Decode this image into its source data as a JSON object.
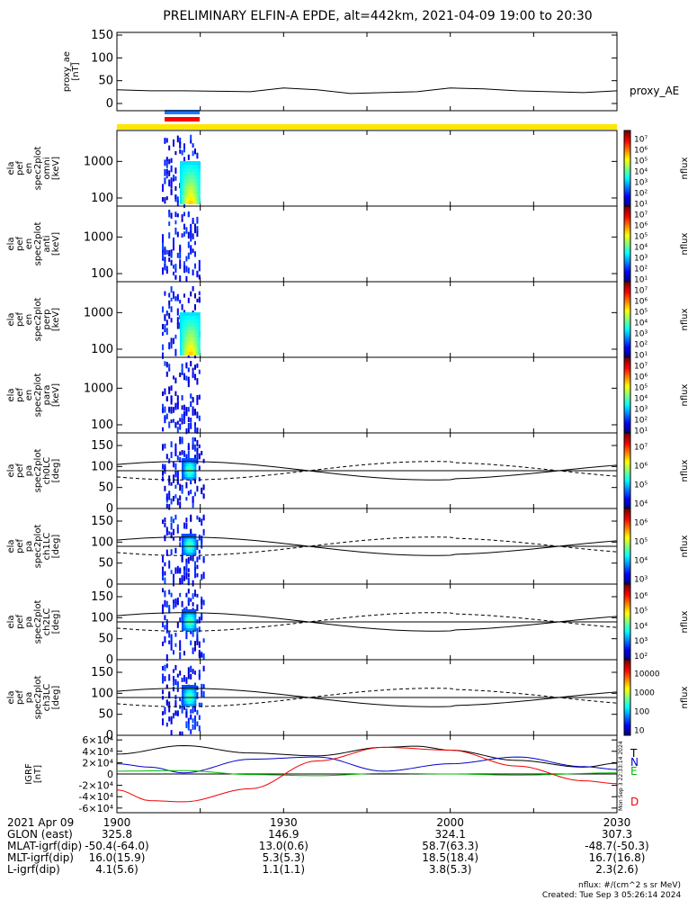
{
  "title": "PRELIMINARY ELFIN-A EPDE, alt=442km, 2021-04-09 19:00 to 20:30",
  "colors": {
    "yellow_bar": "#ffe600",
    "blue_bar": "#1e78ff",
    "red_bar": "#ff0000"
  },
  "chart_data": [
    {
      "type": "line",
      "name": "proxy_ae",
      "ylabel": "proxy_ae\n[nT]",
      "yticks": [
        "0",
        "50",
        "100",
        "150"
      ],
      "ylim": [
        0,
        160
      ],
      "legend": "proxy_AE",
      "x_minutes": [
        0,
        6,
        12,
        18,
        24,
        30,
        36,
        42,
        48,
        54,
        60,
        66,
        72,
        78,
        84,
        90
      ],
      "y": [
        30,
        28,
        28,
        27,
        26,
        34,
        30,
        22,
        24,
        26,
        34,
        32,
        28,
        26,
        24,
        28
      ]
    },
    {
      "type": "heatmap",
      "name": "elx_pef_en_spec2plot_omni",
      "ylabel": [
        "ela",
        "pef",
        "en",
        "spec2plot",
        "omni",
        "[keV]"
      ],
      "yticks": [
        "100",
        "1000"
      ],
      "yscale": "log",
      "colorbar": {
        "label": "nflux",
        "ticks": [
          "10¹",
          "10²",
          "10³",
          "10⁴",
          "10⁵",
          "10⁶",
          "10⁷"
        ]
      }
    },
    {
      "type": "heatmap",
      "name": "elx_pef_en_spec2plot_anti",
      "ylabel": [
        "ela",
        "pef",
        "en",
        "spec2plot",
        "anti",
        "[keV]"
      ],
      "yticks": [
        "100",
        "1000"
      ],
      "yscale": "log",
      "colorbar": {
        "label": "nflux",
        "ticks": [
          "10¹",
          "10²",
          "10³",
          "10⁴",
          "10⁵",
          "10⁶",
          "10⁷"
        ]
      }
    },
    {
      "type": "heatmap",
      "name": "elx_pef_en_spec2plot_perp",
      "ylabel": [
        "ela",
        "pef",
        "en",
        "spec2plot",
        "perp",
        "[keV]"
      ],
      "yticks": [
        "100",
        "1000"
      ],
      "yscale": "log",
      "colorbar": {
        "label": "nflux",
        "ticks": [
          "10¹",
          "10²",
          "10³",
          "10⁴",
          "10⁵",
          "10⁶",
          "10⁷"
        ]
      }
    },
    {
      "type": "heatmap",
      "name": "elx_pef_en_spec2plot_para",
      "ylabel": [
        "ela",
        "pef",
        "en",
        "spec2plot",
        "para",
        "[keV]"
      ],
      "yticks": [
        "100",
        "1000"
      ],
      "yscale": "log",
      "colorbar": {
        "label": "nflux",
        "ticks": [
          "10¹",
          "10²",
          "10³",
          "10⁴",
          "10⁵",
          "10⁶",
          "10⁷"
        ]
      }
    },
    {
      "type": "heatmap",
      "name": "elx_pef_pa_spec2plot_ch0LC",
      "ylabel": [
        "ela",
        "pef",
        "pa",
        "spec2plot",
        "ch0LC",
        "[deg]"
      ],
      "yticks": [
        "0",
        "50",
        "100",
        "150"
      ],
      "ylim": [
        0,
        180
      ],
      "colorbar": {
        "label": "nflux",
        "ticks": [
          "10⁴",
          "10⁵",
          "10⁶",
          "10⁷"
        ]
      }
    },
    {
      "type": "heatmap",
      "name": "elx_pef_pa_spec2plot_ch1LC",
      "ylabel": [
        "ela",
        "pef",
        "pa",
        "spec2plot",
        "ch1LC",
        "[deg]"
      ],
      "yticks": [
        "0",
        "50",
        "100",
        "150"
      ],
      "ylim": [
        0,
        180
      ],
      "colorbar": {
        "label": "nflux",
        "ticks": [
          "10³",
          "10⁴",
          "10⁵",
          "10⁶"
        ]
      }
    },
    {
      "type": "heatmap",
      "name": "elx_pef_pa_spec2plot_ch2LC",
      "ylabel": [
        "ela",
        "pef",
        "pa",
        "spec2plot",
        "ch2LC",
        "[deg]"
      ],
      "yticks": [
        "0",
        "50",
        "100",
        "150"
      ],
      "ylim": [
        0,
        180
      ],
      "colorbar": {
        "label": "nflux",
        "ticks": [
          "10²",
          "10³",
          "10⁴",
          "10⁵",
          "10⁶"
        ]
      }
    },
    {
      "type": "heatmap",
      "name": "elx_pef_pa_spec2plot_ch3LC",
      "ylabel": [
        "ela",
        "pef",
        "pa",
        "spec2plot",
        "ch3LC",
        "[deg]"
      ],
      "yticks": [
        "0",
        "50",
        "100",
        "150"
      ],
      "ylim": [
        0,
        180
      ],
      "colorbar": {
        "label": "nflux",
        "ticks": [
          "10",
          "100",
          "1000",
          "10000"
        ]
      }
    },
    {
      "type": "line",
      "name": "igrf",
      "ylabel": [
        "IGRF",
        "[nT]"
      ],
      "yticks": [
        "-6×10⁴",
        "-4×10⁴",
        "-2×10⁴",
        "0",
        "2×10⁴",
        "4×10⁴",
        "6×10⁴"
      ],
      "ylim": [
        -65000,
        65000
      ],
      "series": [
        {
          "name": "T",
          "color": "#000000",
          "x_minutes": [
            0,
            12,
            24,
            36,
            48,
            54,
            60,
            72,
            84,
            90
          ],
          "y": [
            35000,
            50000,
            37000,
            32000,
            47000,
            49000,
            42000,
            24000,
            12000,
            19000
          ]
        },
        {
          "name": "N",
          "color": "#0000cc",
          "x_minutes": [
            0,
            6,
            12,
            24,
            36,
            48,
            60,
            72,
            84,
            90
          ],
          "y": [
            18000,
            12000,
            2000,
            26000,
            30000,
            5000,
            18000,
            30000,
            13000,
            8000
          ]
        },
        {
          "name": "E",
          "color": "#00bb00",
          "x_minutes": [
            0,
            12,
            24,
            36,
            48,
            60,
            72,
            90
          ],
          "y": [
            5000,
            6000,
            -1000,
            -3000,
            1000,
            0,
            -2000,
            2000
          ]
        },
        {
          "name": "D",
          "color": "#ee0000",
          "x_minutes": [
            0,
            6,
            12,
            24,
            36,
            48,
            60,
            72,
            84,
            90
          ],
          "y": [
            -28000,
            -47000,
            -49000,
            -26000,
            23000,
            47000,
            42000,
            14000,
            -12000,
            -17000
          ]
        }
      ]
    }
  ],
  "colorbar_side_label": "Mon Sep 3 22:33:14 2024",
  "xaxis": {
    "row_labels": [
      "2021 Apr 09",
      "GLON (east)",
      "MLAT-igrf(dip)",
      "MLT-igrf(dip)",
      "L-igrf(dip)"
    ],
    "ticks": [
      {
        "minute": 0,
        "values": [
          "1900",
          "325.8",
          "-50.4(-64.0)",
          "16.0(15.9)",
          "4.1(5.6)"
        ]
      },
      {
        "minute": 30,
        "values": [
          "1930",
          "146.9",
          "13.0(0.6)",
          "5.3(5.3)",
          "1.1(1.1)"
        ]
      },
      {
        "minute": 60,
        "values": [
          "2000",
          "324.1",
          "58.7(63.3)",
          "18.5(18.4)",
          "3.8(5.3)"
        ]
      },
      {
        "minute": 90,
        "values": [
          "2030",
          "307.3",
          "-48.7(-50.3)",
          "16.7(16.8)",
          "2.3(2.6)"
        ]
      }
    ]
  },
  "footer": {
    "units": "nflux: #/(cm^2 s sr MeV)",
    "created": "Created: Tue Sep  3 05:26:14 2024"
  }
}
